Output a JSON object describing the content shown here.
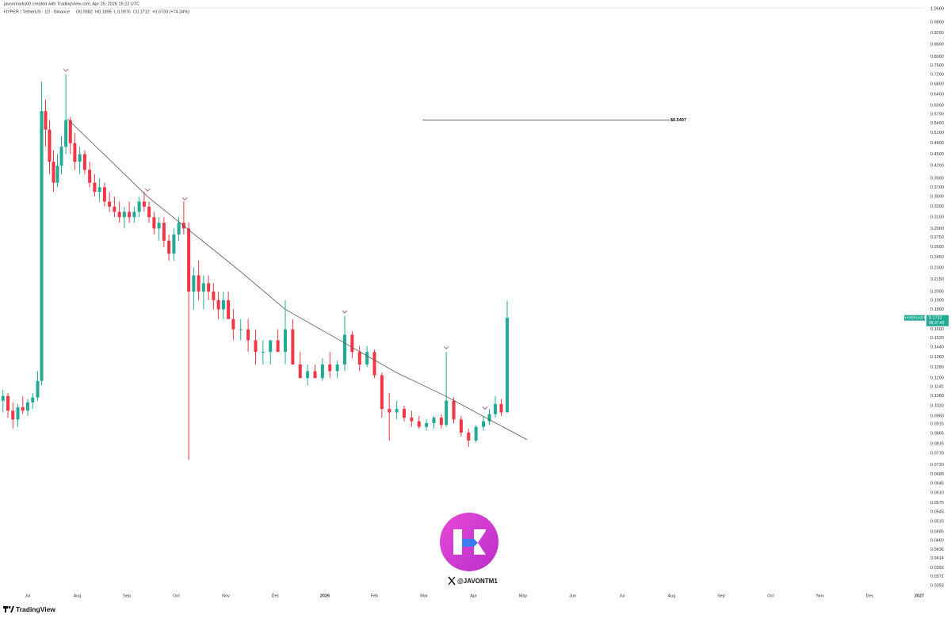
{
  "header": {
    "attribution": "javonmarks00 created with TradingView.com, Apr 25, 2026 15:22 UTC",
    "symbol": "HYPER / TetherUS · 1D · Binance",
    "ohlc_letters": [
      "O",
      "H",
      "L",
      "C"
    ],
    "change_text": "+0.0730 (+74.34%)"
  },
  "chart_data": {
    "type": "candlestick",
    "log_scale": true,
    "grid": false,
    "up_color": "#22ab94",
    "down_color": "#f23645",
    "xlim": [
      -0.56,
      18.08
    ],
    "xticks": [
      {
        "value": 0,
        "label": "Jul"
      },
      {
        "value": 1,
        "label": "Aug"
      },
      {
        "value": 2,
        "label": "Sep"
      },
      {
        "value": 3,
        "label": "Oct"
      },
      {
        "value": 4,
        "label": "Nov"
      },
      {
        "value": 5,
        "label": "Dec"
      },
      {
        "value": 6,
        "label": "2026"
      },
      {
        "value": 7,
        "label": "Feb"
      },
      {
        "value": 8,
        "label": "Mar"
      },
      {
        "value": 9,
        "label": "Apr"
      },
      {
        "value": 10,
        "label": "May"
      },
      {
        "value": 11,
        "label": "Jun"
      },
      {
        "value": 12,
        "label": "Jul"
      },
      {
        "value": 13,
        "label": "Aug"
      },
      {
        "value": 14,
        "label": "Sep"
      },
      {
        "value": 15,
        "label": "Oct"
      },
      {
        "value": 16,
        "label": "Nov"
      },
      {
        "value": 17,
        "label": "Dec"
      },
      {
        "value": 18,
        "label": "2027"
      }
    ],
    "ylim": [
      0.0343,
      1.066
    ],
    "yticks": [
      {
        "value": 1.06,
        "label": "1.0600"
      },
      {
        "value": 0.98,
        "label": "0.9800"
      },
      {
        "value": 0.92,
        "label": "0.9200"
      },
      {
        "value": 0.86,
        "label": "0.8600"
      },
      {
        "value": 0.8,
        "label": "0.8000"
      },
      {
        "value": 0.76,
        "label": "0.7600"
      },
      {
        "value": 0.72,
        "label": "0.7200"
      },
      {
        "value": 0.68,
        "label": "0.6800"
      },
      {
        "value": 0.64,
        "label": "0.6400"
      },
      {
        "value": 0.6,
        "label": "0.6000"
      },
      {
        "value": 0.57,
        "label": "0.5700"
      },
      {
        "value": 0.54,
        "label": "0.5400"
      },
      {
        "value": 0.51,
        "label": "0.5100"
      },
      {
        "value": 0.48,
        "label": "0.4800"
      },
      {
        "value": 0.45,
        "label": "0.4500"
      },
      {
        "value": 0.42,
        "label": "0.4200"
      },
      {
        "value": 0.39,
        "label": "0.3900"
      },
      {
        "value": 0.37,
        "label": "0.3700"
      },
      {
        "value": 0.35,
        "label": "0.3500"
      },
      {
        "value": 0.33,
        "label": "0.3300"
      },
      {
        "value": 0.31,
        "label": "0.3100"
      },
      {
        "value": 0.29,
        "label": "0.2900"
      },
      {
        "value": 0.275,
        "label": "0.2750"
      },
      {
        "value": 0.26,
        "label": "0.2600"
      },
      {
        "value": 0.245,
        "label": "0.2450"
      },
      {
        "value": 0.23,
        "label": "0.2300"
      },
      {
        "value": 0.215,
        "label": "0.2150"
      },
      {
        "value": 0.2,
        "label": "0.2000"
      },
      {
        "value": 0.19,
        "label": "0.1900"
      },
      {
        "value": 0.18,
        "label": "0.1800"
      },
      {
        "value": 0.16,
        "label": "0.1600"
      },
      {
        "value": 0.152,
        "label": "0.1520"
      },
      {
        "value": 0.144,
        "label": "0.1440"
      },
      {
        "value": 0.136,
        "label": "0.1360"
      },
      {
        "value": 0.128,
        "label": "0.1280"
      },
      {
        "value": 0.12,
        "label": "0.1200"
      },
      {
        "value": 0.114,
        "label": "0.1140"
      },
      {
        "value": 0.108,
        "label": "0.1080"
      },
      {
        "value": 0.102,
        "label": "0.1020"
      },
      {
        "value": 0.096,
        "label": "0.0960"
      },
      {
        "value": 0.0915,
        "label": "0.0915"
      },
      {
        "value": 0.0865,
        "label": "0.0865"
      },
      {
        "value": 0.0815,
        "label": "0.0815"
      },
      {
        "value": 0.077,
        "label": "0.0770"
      },
      {
        "value": 0.072,
        "label": "0.0720"
      },
      {
        "value": 0.068,
        "label": "0.0680"
      },
      {
        "value": 0.0645,
        "label": "0.0645"
      },
      {
        "value": 0.061,
        "label": "0.0610"
      },
      {
        "value": 0.0575,
        "label": "0.0575"
      },
      {
        "value": 0.0545,
        "label": "0.0545"
      },
      {
        "value": 0.0515,
        "label": "0.0515"
      },
      {
        "value": 0.0485,
        "label": "0.0485"
      },
      {
        "value": 0.046,
        "label": "0.0460"
      },
      {
        "value": 0.0436,
        "label": "0.0436"
      },
      {
        "value": 0.0414,
        "label": "0.0414"
      },
      {
        "value": 0.0392,
        "label": "0.0392"
      },
      {
        "value": 0.0372,
        "label": "0.0372"
      },
      {
        "value": 0.0353,
        "label": "0.0353"
      }
    ],
    "x": [
      -0.5,
      -0.4,
      -0.3,
      -0.2,
      -0.1,
      0.0,
      0.1,
      0.2,
      0.28,
      0.36,
      0.44,
      0.52,
      0.6,
      0.68,
      0.77,
      0.86,
      0.95,
      1.05,
      1.15,
      1.25,
      1.35,
      1.45,
      1.55,
      1.65,
      1.75,
      1.85,
      1.95,
      2.05,
      2.15,
      2.25,
      2.35,
      2.45,
      2.55,
      2.65,
      2.75,
      2.85,
      2.95,
      3.05,
      3.15,
      3.25,
      3.35,
      3.45,
      3.55,
      3.65,
      3.75,
      3.85,
      3.95,
      4.05,
      4.15,
      4.3,
      4.45,
      4.6,
      4.75,
      4.9,
      5.05,
      5.2,
      5.35,
      5.5,
      5.65,
      5.8,
      5.95,
      6.1,
      6.25,
      6.4,
      6.55,
      6.7,
      6.85,
      7.0,
      7.15,
      7.3,
      7.45,
      7.6,
      7.75,
      7.9,
      8.05,
      8.2,
      8.35,
      8.45,
      8.6,
      8.75,
      8.9,
      9.05,
      9.2,
      9.32,
      9.44,
      9.56,
      9.68
    ],
    "open": [
      0.105,
      0.108,
      0.099,
      0.094,
      0.101,
      0.099,
      0.104,
      0.107,
      0.118,
      0.58,
      0.52,
      0.43,
      0.38,
      0.42,
      0.47,
      0.55,
      0.48,
      0.43,
      0.45,
      0.41,
      0.38,
      0.36,
      0.37,
      0.34,
      0.33,
      0.32,
      0.31,
      0.32,
      0.31,
      0.32,
      0.34,
      0.33,
      0.31,
      0.29,
      0.3,
      0.27,
      0.25,
      0.28,
      0.3,
      0.29,
      0.2,
      0.22,
      0.2,
      0.21,
      0.2,
      0.19,
      0.18,
      0.19,
      0.17,
      0.16,
      0.16,
      0.15,
      0.14,
      0.14,
      0.15,
      0.14,
      0.16,
      0.13,
      0.12,
      0.125,
      0.12,
      0.13,
      0.125,
      0.13,
      0.155,
      0.14,
      0.13,
      0.14,
      0.122,
      0.1,
      0.098,
      0.1,
      0.095,
      0.093,
      0.09,
      0.092,
      0.095,
      0.091,
      0.105,
      0.094,
      0.087,
      0.083,
      0.09,
      0.093,
      0.097,
      0.103,
      0.0982
    ],
    "high": [
      0.112,
      0.11,
      0.104,
      0.103,
      0.108,
      0.106,
      0.11,
      0.125,
      0.69,
      0.62,
      0.55,
      0.46,
      0.45,
      0.5,
      0.72,
      0.56,
      0.51,
      0.47,
      0.46,
      0.43,
      0.4,
      0.39,
      0.38,
      0.36,
      0.35,
      0.34,
      0.33,
      0.34,
      0.33,
      0.35,
      0.36,
      0.34,
      0.32,
      0.31,
      0.31,
      0.28,
      0.29,
      0.31,
      0.34,
      0.3,
      0.23,
      0.24,
      0.22,
      0.22,
      0.21,
      0.2,
      0.2,
      0.2,
      0.18,
      0.17,
      0.17,
      0.16,
      0.15,
      0.15,
      0.16,
      0.19,
      0.17,
      0.14,
      0.13,
      0.13,
      0.135,
      0.14,
      0.133,
      0.173,
      0.158,
      0.145,
      0.145,
      0.142,
      0.124,
      0.11,
      0.105,
      0.102,
      0.099,
      0.096,
      0.094,
      0.096,
      0.097,
      0.14,
      0.107,
      0.096,
      0.089,
      0.091,
      0.096,
      0.1,
      0.108,
      0.106,
      0.1895
    ],
    "low": [
      0.098,
      0.095,
      0.089,
      0.09,
      0.097,
      0.096,
      0.1,
      0.105,
      0.115,
      0.47,
      0.4,
      0.36,
      0.37,
      0.4,
      0.45,
      0.45,
      0.41,
      0.4,
      0.4,
      0.37,
      0.35,
      0.34,
      0.33,
      0.32,
      0.31,
      0.3,
      0.29,
      0.3,
      0.3,
      0.31,
      0.32,
      0.3,
      0.28,
      0.27,
      0.26,
      0.24,
      0.24,
      0.27,
      0.28,
      0.074,
      0.18,
      0.19,
      0.18,
      0.19,
      0.18,
      0.17,
      0.17,
      0.17,
      0.15,
      0.15,
      0.14,
      0.13,
      0.13,
      0.13,
      0.14,
      0.13,
      0.13,
      0.12,
      0.115,
      0.12,
      0.118,
      0.12,
      0.12,
      0.125,
      0.135,
      0.125,
      0.128,
      0.12,
      0.095,
      0.083,
      0.094,
      0.093,
      0.09,
      0.089,
      0.088,
      0.089,
      0.089,
      0.09,
      0.092,
      0.085,
      0.08,
      0.082,
      0.088,
      0.091,
      0.095,
      0.096,
      0.0976
    ],
    "close": [
      0.108,
      0.099,
      0.094,
      0.101,
      0.099,
      0.104,
      0.107,
      0.118,
      0.58,
      0.52,
      0.43,
      0.38,
      0.42,
      0.47,
      0.55,
      0.48,
      0.43,
      0.45,
      0.41,
      0.38,
      0.36,
      0.37,
      0.34,
      0.33,
      0.32,
      0.31,
      0.32,
      0.31,
      0.32,
      0.34,
      0.33,
      0.31,
      0.29,
      0.3,
      0.27,
      0.25,
      0.28,
      0.3,
      0.29,
      0.2,
      0.22,
      0.2,
      0.21,
      0.2,
      0.19,
      0.18,
      0.19,
      0.17,
      0.16,
      0.16,
      0.15,
      0.14,
      0.14,
      0.15,
      0.14,
      0.16,
      0.13,
      0.12,
      0.125,
      0.12,
      0.13,
      0.125,
      0.13,
      0.155,
      0.14,
      0.13,
      0.14,
      0.122,
      0.1,
      0.098,
      0.1,
      0.095,
      0.093,
      0.09,
      0.092,
      0.095,
      0.091,
      0.105,
      0.094,
      0.087,
      0.083,
      0.09,
      0.093,
      0.097,
      0.103,
      0.098,
      0.1712
    ],
    "trendline": {
      "color": "#555555",
      "x": [
        0.8,
        2.42,
        4.24,
        5.2,
        6.3,
        7.44,
        8.43,
        10.08
      ],
      "values": [
        0.554,
        0.35,
        0.228,
        0.18,
        0.15,
        0.124,
        0.108,
        0.0834
      ]
    },
    "hline": {
      "x": [
        7.97,
        12.96
      ],
      "value": 0.5497,
      "value_label": "$0.5497"
    },
    "pivot_markers": {
      "color": "#a0658a",
      "x": [
        0.77,
        2.42,
        3.17,
        6.4,
        8.45,
        9.23
      ],
      "values": [
        0.72,
        0.355,
        0.337,
        0.173,
        0.14,
        0.098
      ]
    },
    "price_tag": {
      "symbol": "HYPERUSDT",
      "countdown": "08:37:40",
      "color": "#22ab94"
    }
  },
  "watermark": {
    "handle": "@JAVONTM1"
  },
  "footer": {
    "brand": "TradingView"
  }
}
